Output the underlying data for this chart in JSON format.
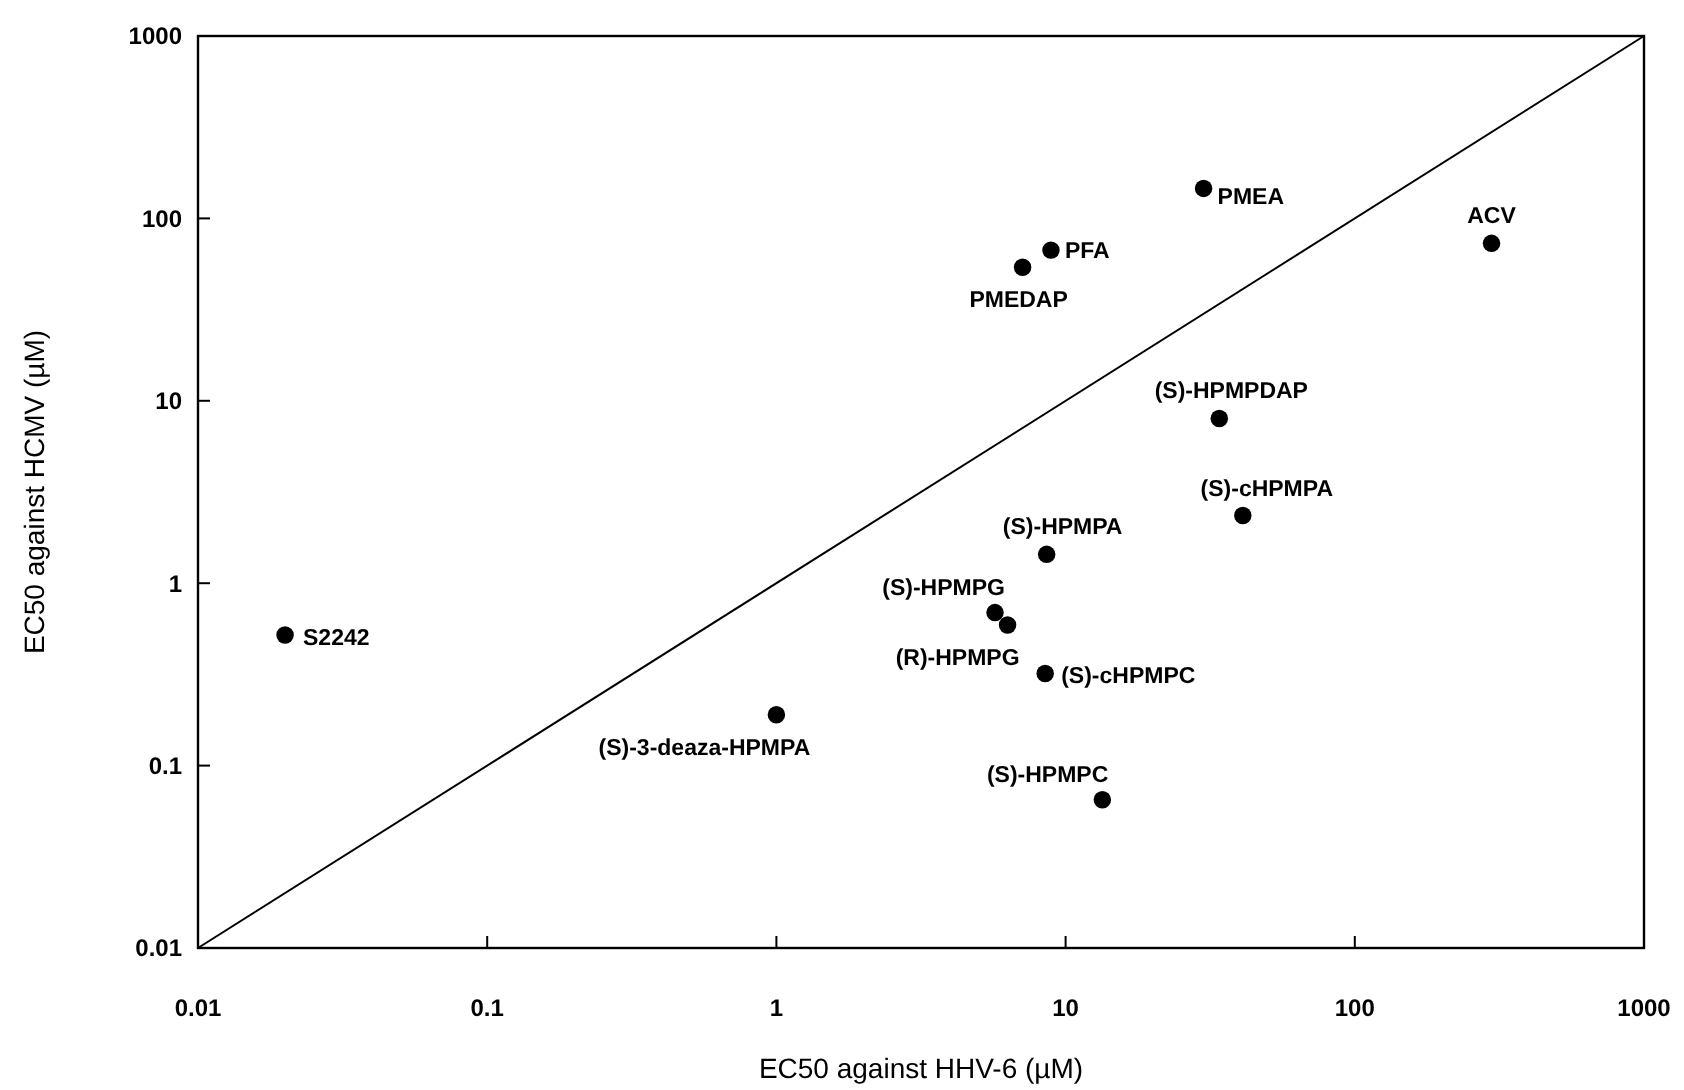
{
  "chart_data": {
    "type": "scatter",
    "xlabel": "EC50 against HHV-6 (µM)",
    "ylabel": "EC50 against HCMV (µM)",
    "log": "xy",
    "xlim": [
      0.01,
      1000
    ],
    "ylim": [
      0.01,
      1000
    ],
    "xticks": [
      0.01,
      0.1,
      1,
      10,
      100,
      1000
    ],
    "yticks": [
      0.01,
      0.1,
      1,
      10,
      100,
      1000
    ],
    "grid": false,
    "marker": "circle",
    "series": [
      {
        "color": "#000000",
        "x": [
          0.02,
          1.0,
          30,
          8.9,
          7.1,
          297,
          34,
          41,
          8.6,
          5.7,
          6.3,
          8.5,
          13.4
        ],
        "values": [
          0.52,
          0.19,
          146,
          67,
          54,
          73,
          8.0,
          2.35,
          1.44,
          0.69,
          0.59,
          0.32,
          0.065
        ]
      },
      {
        "type": "line",
        "color": "#000000",
        "marker": "none",
        "line_style": "solid",
        "x": [
          0.01,
          1000
        ],
        "values": [
          0.01,
          1000
        ]
      }
    ],
    "annotations": [
      {
        "text": "S2242",
        "x": 0.02,
        "y": 0.52
      },
      {
        "text": "(S)-3-deaza-HPMPA",
        "x": 1.0,
        "y": 0.19
      },
      {
        "text": "PMEA",
        "x": 30,
        "y": 146
      },
      {
        "text": "PFA",
        "x": 8.9,
        "y": 67
      },
      {
        "text": "PMEDAP",
        "x": 7.1,
        "y": 54
      },
      {
        "text": "ACV",
        "x": 297,
        "y": 73
      },
      {
        "text": "(S)-HPMPDAP",
        "x": 34,
        "y": 8.0
      },
      {
        "text": "(S)-cHPMPA",
        "x": 41,
        "y": 2.35
      },
      {
        "text": "(S)-HPMPA",
        "x": 8.6,
        "y": 1.44
      },
      {
        "text": "(S)-HPMPG",
        "x": 5.7,
        "y": 0.69
      },
      {
        "text": "(R)-HPMPG",
        "x": 6.3,
        "y": 0.59
      },
      {
        "text": "(S)-cHPMPC",
        "x": 8.5,
        "y": 0.32
      },
      {
        "text": "(S)-HPMPC",
        "x": 13.4,
        "y": 0.065
      }
    ]
  }
}
